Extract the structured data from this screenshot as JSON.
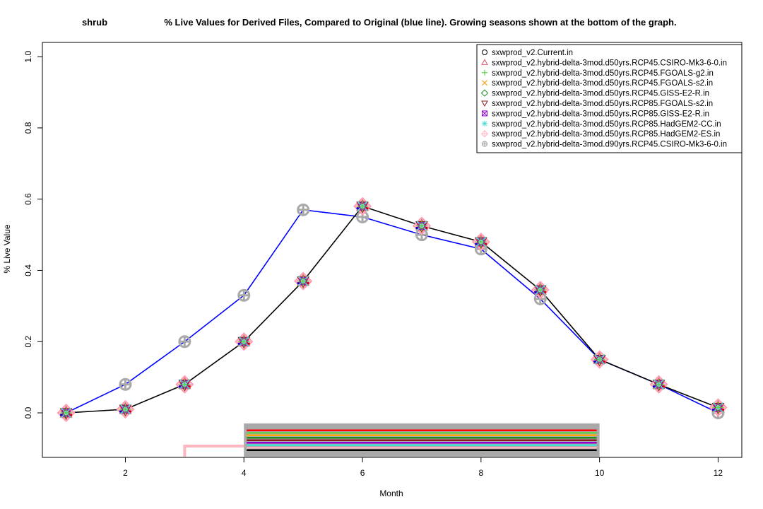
{
  "chart_data": {
    "type": "line",
    "title": {
      "left": "shrub",
      "main": "% Live Values for Derived Files, Compared to Original (blue line). Growing seasons shown at the bottom of the graph."
    },
    "xlabel": "Month",
    "ylabel": "% Live Value",
    "xlim": [
      0.6,
      12.4
    ],
    "ylim": [
      -0.125,
      1.04
    ],
    "x_ticks": [
      2,
      4,
      6,
      8,
      10,
      12
    ],
    "y_ticks": [
      0.0,
      0.2,
      0.4,
      0.6,
      0.8,
      1.0
    ],
    "y_tick_labels": [
      "0.0",
      "0.2",
      "0.4",
      "0.6",
      "0.8",
      "1.0"
    ],
    "x": [
      1,
      2,
      3,
      4,
      5,
      6,
      7,
      8,
      9,
      10,
      11,
      12
    ],
    "series": [
      {
        "name": "sxwprod_v2.Current.in",
        "role": "original",
        "color": "#0000ff",
        "values": [
          0.0,
          0.08,
          0.2,
          0.33,
          0.57,
          0.55,
          0.5,
          0.46,
          0.32,
          0.15,
          0.08,
          0.0
        ]
      },
      {
        "name": "sxwprod_v2.hybrid-delta-3mod.d90yrs.RCP45.CSIRO-Mk3-6-0.in",
        "role": "derived",
        "color": "#000000",
        "values": [
          0.0,
          0.01,
          0.08,
          0.2,
          0.37,
          0.58,
          0.525,
          0.48,
          0.345,
          0.15,
          0.08,
          0.015
        ]
      }
    ],
    "legend": {
      "placement": "top-right",
      "entries": [
        {
          "label": "sxwprod_v2.Current.in",
          "symbol": "circle",
          "color": "#000000"
        },
        {
          "label": "sxwprod_v2.hybrid-delta-3mod.d50yrs.RCP45.CSIRO-Mk3-6-0.in",
          "symbol": "triangle-up",
          "color": "#df536b"
        },
        {
          "label": "sxwprod_v2.hybrid-delta-3mod.d50yrs.RCP45.FGOALS-g2.in",
          "symbol": "plus",
          "color": "#61d04f"
        },
        {
          "label": "sxwprod_v2.hybrid-delta-3mod.d50yrs.RCP45.FGOALS-s2.in",
          "symbol": "cross",
          "color": "#f5a623"
        },
        {
          "label": "sxwprod_v2.hybrid-delta-3mod.d50yrs.RCP45.GISS-E2-R.in",
          "symbol": "diamond",
          "color": "#228b22"
        },
        {
          "label": "sxwprod_v2.hybrid-delta-3mod.d50yrs.RCP85.FGOALS-s2.in",
          "symbol": "triangle-down",
          "color": "#8b1a1a"
        },
        {
          "label": "sxwprod_v2.hybrid-delta-3mod.d50yrs.RCP85.GISS-E2-R.in",
          "symbol": "square-x",
          "color": "#9400d3"
        },
        {
          "label": "sxwprod_v2.hybrid-delta-3mod.d50yrs.RCP85.HadGEM2-CC.in",
          "symbol": "asterisk",
          "color": "#40e0d0"
        },
        {
          "label": "sxwprod_v2.hybrid-delta-3mod.d50yrs.RCP85.HadGEM2-ES.in",
          "symbol": "diamond-plus",
          "color": "#ffb6c1"
        },
        {
          "label": "sxwprod_v2.hybrid-delta-3mod.d90yrs.RCP45.CSIRO-Mk3-6-0.in",
          "symbol": "circle-plus",
          "color": "#a9a9a9"
        }
      ]
    },
    "growing_seasons": {
      "bars": [
        {
          "start": 4,
          "end": 10,
          "colors": [
            "#a9a9a9",
            "#ff0000",
            "#61d04f",
            "#ffa500",
            "#228b22",
            "#8b1a1a",
            "#9400d3",
            "#40e0d0",
            "#ffb6c1",
            "#000000"
          ]
        }
      ],
      "original": {
        "start": 3,
        "end": 4,
        "color": "#ffb6c1"
      }
    }
  }
}
